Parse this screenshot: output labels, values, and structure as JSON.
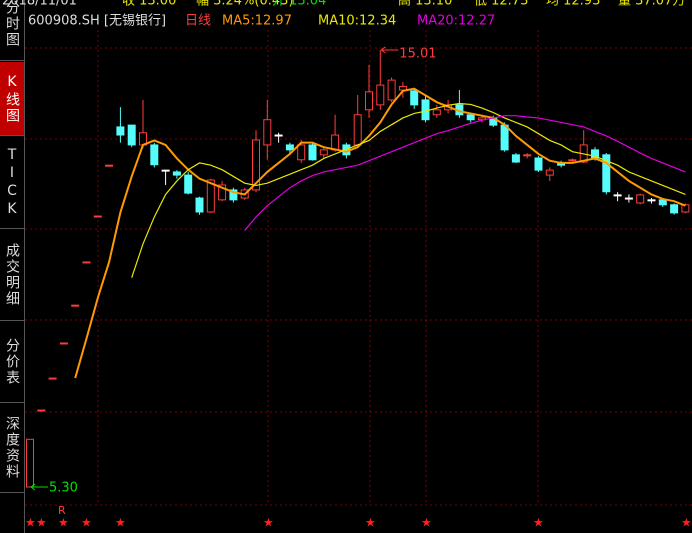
{
  "header": [
    "2018/11/01",
    "收 13.00",
    "幅 3.24%(0.43)",
    "开 13.04",
    "高 13.10",
    "低 12.73",
    "均 12.93",
    "量 37.07万"
  ],
  "sidebar": {
    "tabs": [
      "分时图",
      "K线图",
      "TICK",
      "成交明细",
      "分价表",
      "深度资料"
    ],
    "active": 1
  },
  "chart_data": {
    "type": "candlestick",
    "symbol": "600908.SH [无锡银行]",
    "period": "日线",
    "categories": [
      null,
      null,
      null,
      null,
      null,
      null,
      null,
      null,
      null,
      null,
      null,
      null,
      null,
      null,
      null,
      null,
      null,
      null,
      null,
      null,
      null,
      null,
      null,
      null,
      null,
      null,
      null,
      null,
      null,
      null,
      null,
      null,
      null,
      null,
      null,
      null,
      null,
      null,
      null,
      null,
      null,
      null,
      null,
      null,
      null,
      null,
      null,
      null,
      null,
      null,
      null,
      null,
      null,
      null,
      null,
      null,
      null,
      null,
      null
    ],
    "open": [
      5.3,
      7.01,
      7.72,
      8.5,
      9.34,
      10.3,
      11.32,
      12.45,
      13.3,
      13.34,
      12.9,
      12.9,
      12.34,
      12.3,
      12.23,
      11.72,
      11.41,
      11.68,
      11.9,
      11.72,
      11.9,
      12.9,
      13.12,
      12.9,
      12.57,
      12.9,
      12.68,
      12.79,
      12.9,
      12.9,
      13.68,
      13.79,
      13.9,
      14.12,
      14.1,
      13.9,
      13.57,
      13.68,
      13.79,
      13.57,
      13.46,
      13.5,
      13.34,
      12.68,
      12.68,
      12.61,
      12.23,
      12.5,
      12.57,
      12.52,
      12.79,
      12.68,
      11.79,
      11.72,
      11.61,
      11.68,
      11.68,
      11.57,
      11.41
    ],
    "high": [
      6.36,
      7.01,
      7.72,
      8.5,
      9.34,
      10.3,
      11.32,
      12.45,
      13.74,
      13.34,
      13.9,
      12.95,
      12.34,
      12.34,
      12.3,
      11.75,
      12.15,
      12.1,
      11.95,
      11.95,
      13.23,
      13.9,
      13.17,
      12.95,
      13.01,
      12.95,
      12.85,
      13.57,
      12.95,
      14.01,
      14.68,
      15.01,
      14.4,
      14.3,
      14.15,
      14.0,
      13.79,
      13.9,
      14.12,
      13.6,
      13.57,
      13.55,
      13.4,
      12.72,
      12.72,
      12.65,
      12.4,
      12.55,
      12.6,
      13.23,
      12.85,
      12.72,
      11.85,
      11.8,
      11.82,
      11.72,
      11.7,
      11.6,
      11.6
    ],
    "low": [
      5.3,
      7.01,
      7.72,
      8.5,
      9.34,
      10.3,
      11.32,
      12.45,
      12.95,
      12.85,
      12.83,
      12.4,
      12.01,
      12.15,
      11.8,
      11.35,
      11.39,
      11.65,
      11.62,
      11.68,
      11.85,
      12.57,
      12.95,
      12.68,
      12.5,
      12.55,
      12.6,
      12.75,
      12.6,
      12.85,
      13.5,
      13.68,
      13.85,
      13.95,
      13.7,
      13.4,
      13.5,
      13.6,
      13.5,
      13.4,
      13.4,
      13.3,
      12.75,
      12.5,
      12.6,
      12.3,
      12.1,
      12.4,
      12.5,
      12.5,
      12.55,
      11.8,
      11.65,
      11.62,
      11.58,
      11.6,
      11.52,
      11.35,
      11.38
    ],
    "close": [
      6.36,
      7.01,
      7.72,
      8.5,
      9.34,
      10.3,
      11.32,
      12.45,
      13.12,
      12.9,
      13.17,
      12.46,
      12.34,
      12.23,
      11.83,
      11.41,
      12.12,
      12.01,
      11.68,
      11.9,
      13.01,
      13.46,
      13.12,
      12.79,
      12.9,
      12.57,
      12.79,
      13.12,
      12.68,
      13.57,
      14.08,
      14.23,
      14.34,
      14.2,
      13.79,
      13.46,
      13.68,
      13.79,
      13.57,
      13.46,
      13.5,
      13.34,
      12.79,
      12.52,
      12.68,
      12.34,
      12.34,
      12.45,
      12.57,
      12.9,
      12.61,
      11.86,
      11.79,
      11.72,
      11.79,
      11.68,
      11.57,
      11.39,
      11.57
    ],
    "up_color": "#ff3c3c",
    "down_color": "#54fcfc",
    "flat_color": "#ffffff",
    "series": [
      {
        "name": "MA5:12.97",
        "color": "#ff9a00",
        "values": [
          null,
          null,
          null,
          null,
          7.72,
          8.6,
          9.5,
          10.3,
          11.4,
          12.2,
          12.9,
          13.0,
          12.9,
          12.6,
          12.35,
          12.15,
          12.05,
          11.95,
          11.85,
          11.8,
          12.05,
          12.3,
          12.5,
          12.7,
          12.95,
          12.95,
          12.85,
          12.8,
          12.75,
          12.85,
          13.1,
          13.4,
          13.8,
          14.1,
          14.15,
          14.0,
          13.85,
          13.75,
          13.65,
          13.6,
          13.55,
          13.5,
          13.35,
          13.1,
          12.9,
          12.7,
          12.55,
          12.5,
          12.5,
          12.55,
          12.6,
          12.5,
          12.3,
          12.1,
          11.95,
          11.8,
          11.7,
          11.65,
          11.55
        ]
      },
      {
        "name": "MA10:12.34",
        "color": "#e8e800",
        "values": [
          null,
          null,
          null,
          null,
          null,
          null,
          null,
          null,
          null,
          9.95,
          10.7,
          11.3,
          11.8,
          12.1,
          12.35,
          12.5,
          12.45,
          12.35,
          12.2,
          12.05,
          12.0,
          12.05,
          12.15,
          12.25,
          12.35,
          12.45,
          12.6,
          12.7,
          12.8,
          12.9,
          13.0,
          13.2,
          13.35,
          13.5,
          13.6,
          13.65,
          13.72,
          13.78,
          13.82,
          13.8,
          13.72,
          13.62,
          13.5,
          13.4,
          13.3,
          13.15,
          13.0,
          12.9,
          12.75,
          12.7,
          12.65,
          12.55,
          12.45,
          12.3,
          12.2,
          12.1,
          12.0,
          11.9,
          11.8
        ]
      },
      {
        "name": "MA20:12.27",
        "color": "#e000e0",
        "values": [
          null,
          null,
          null,
          null,
          null,
          null,
          null,
          null,
          null,
          null,
          null,
          null,
          null,
          null,
          null,
          null,
          null,
          null,
          null,
          11.0,
          11.3,
          11.55,
          11.75,
          11.95,
          12.1,
          12.22,
          12.3,
          12.35,
          12.4,
          12.45,
          12.55,
          12.65,
          12.75,
          12.85,
          12.95,
          13.05,
          13.15,
          13.22,
          13.3,
          13.38,
          13.45,
          13.5,
          13.55,
          13.55,
          13.52,
          13.5,
          13.45,
          13.4,
          13.35,
          13.3,
          13.2,
          13.1,
          12.98,
          12.85,
          12.72,
          12.6,
          12.5,
          12.4,
          12.3
        ]
      }
    ],
    "max_label": {
      "value": 15.01,
      "label": "15.01",
      "color": "#ff3c3c"
    },
    "min_label": {
      "value": 5.3,
      "label": "5.30",
      "color": "#00e000"
    },
    "marker_label": "R",
    "ylim": [
      4.9,
      16.12
    ]
  }
}
